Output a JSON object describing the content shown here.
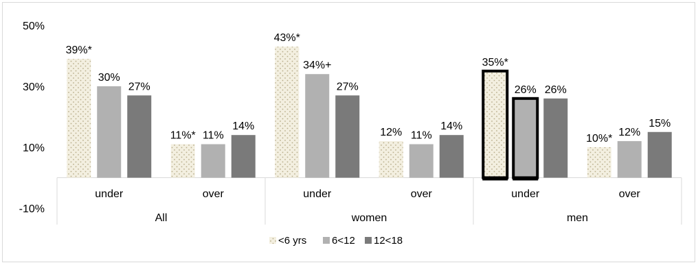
{
  "chart_data": {
    "type": "bar",
    "title": "",
    "xlabel": "",
    "ylabel": "",
    "ylim": [
      -10,
      50
    ],
    "yticks": [
      "50%",
      "30%",
      "10%",
      "-10%"
    ],
    "ytick_values": [
      50,
      30,
      10,
      -10
    ],
    "grid": false,
    "legend_position": "bottom",
    "groups": [
      "All",
      "women",
      "men"
    ],
    "subcategories": [
      "under",
      "over",
      "under",
      "over",
      "under",
      "over"
    ],
    "series": [
      {
        "name": "<6 yrs",
        "values": [
          39,
          11,
          43,
          12,
          35,
          10
        ],
        "labels": [
          "39%*",
          "11%*",
          "43%*",
          "12%",
          "35%*",
          "10%*"
        ],
        "color": "#f2eedf",
        "pattern": "dots"
      },
      {
        "name": "6<12",
        "values": [
          30,
          11,
          34,
          11,
          26,
          12
        ],
        "labels": [
          "30%",
          "11%",
          "34%+",
          "11%",
          "26%",
          "12%"
        ],
        "color": "#b1b1b1"
      },
      {
        "name": "12<18",
        "values": [
          27,
          14,
          27,
          14,
          26,
          15
        ],
        "labels": [
          "27%",
          "14%",
          "27%",
          "14%",
          "26%",
          "15%"
        ],
        "color": "#7a7a7a"
      }
    ],
    "highlighted": [
      "men-under-<6 yrs",
      "men-under-6<12"
    ]
  }
}
